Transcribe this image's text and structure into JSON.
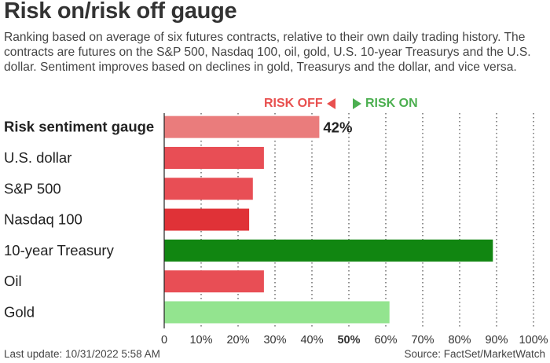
{
  "title": "Risk on/risk off gauge",
  "subtitle": "Ranking based on average of six futures contracts, relative to their own daily trading history. The contracts are futures on the S&P 500, Nasdaq 100, oil, gold, U.S. 10-year Treasurys and the U.S. dollar. Sentiment improves based on declines in gold, Treasurys and the dollar, and vice versa.",
  "legend": {
    "risk_off": "RISK OFF",
    "risk_on": "RISK ON"
  },
  "footer": {
    "last_update": "Last update: 10/31/2022 5:58 AM",
    "source": "Source: FactSet/MarketWatch"
  },
  "chart_data": {
    "type": "bar",
    "orientation": "horizontal",
    "categories": [
      "Risk sentiment gauge",
      "U.S. dollar",
      "S&P 500",
      "Nasdaq 100",
      "10-year Treasury",
      "Oil",
      "Gold"
    ],
    "values": [
      42,
      27,
      24,
      23,
      89,
      27,
      61
    ],
    "bar_colors": [
      "#ea7c7c",
      "#e84e55",
      "#e84e55",
      "#e03237",
      "#118611",
      "#e84e55",
      "#93e48f"
    ],
    "value_labels": [
      "42%",
      "",
      "",
      "",
      "",
      "",
      ""
    ],
    "xlim": [
      0,
      100
    ],
    "x_ticks": [
      "0",
      "10%",
      "20%",
      "30%",
      "40%",
      "50%",
      "60%",
      "70%",
      "80%",
      "90%",
      "100%"
    ],
    "bold_tick": "50%",
    "bold_category": "Risk sentiment gauge",
    "grid": true
  }
}
